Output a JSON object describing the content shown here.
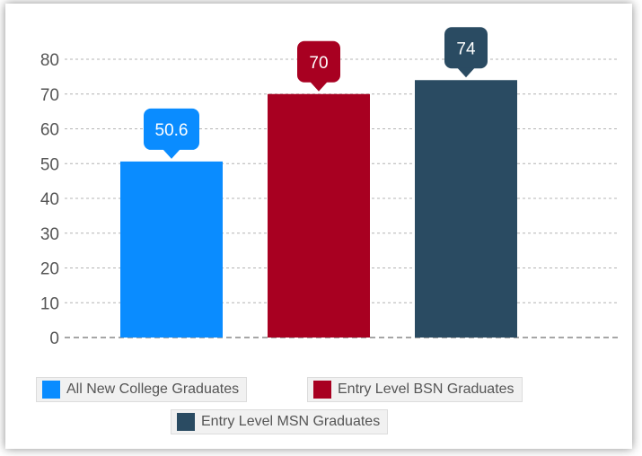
{
  "chart_data": {
    "type": "bar",
    "categories": [
      "All New College Graduates",
      "Entry Level BSN Graduates",
      "Entry Level MSN Graduates"
    ],
    "values": [
      50.6,
      70,
      74
    ],
    "data_labels": [
      "50.6",
      "70",
      "74"
    ],
    "colors": [
      "#0a8cff",
      "#a80021",
      "#2a4b62"
    ],
    "ylim": [
      0,
      80
    ],
    "yticks": [
      "0",
      "10",
      "20",
      "30",
      "40",
      "50",
      "60",
      "70",
      "80"
    ],
    "grid": true,
    "legend": {
      "position": "bottom",
      "entries": [
        "All New College Graduates",
        "Entry Level BSN Graduates",
        "Entry Level MSN Graduates"
      ]
    }
  }
}
